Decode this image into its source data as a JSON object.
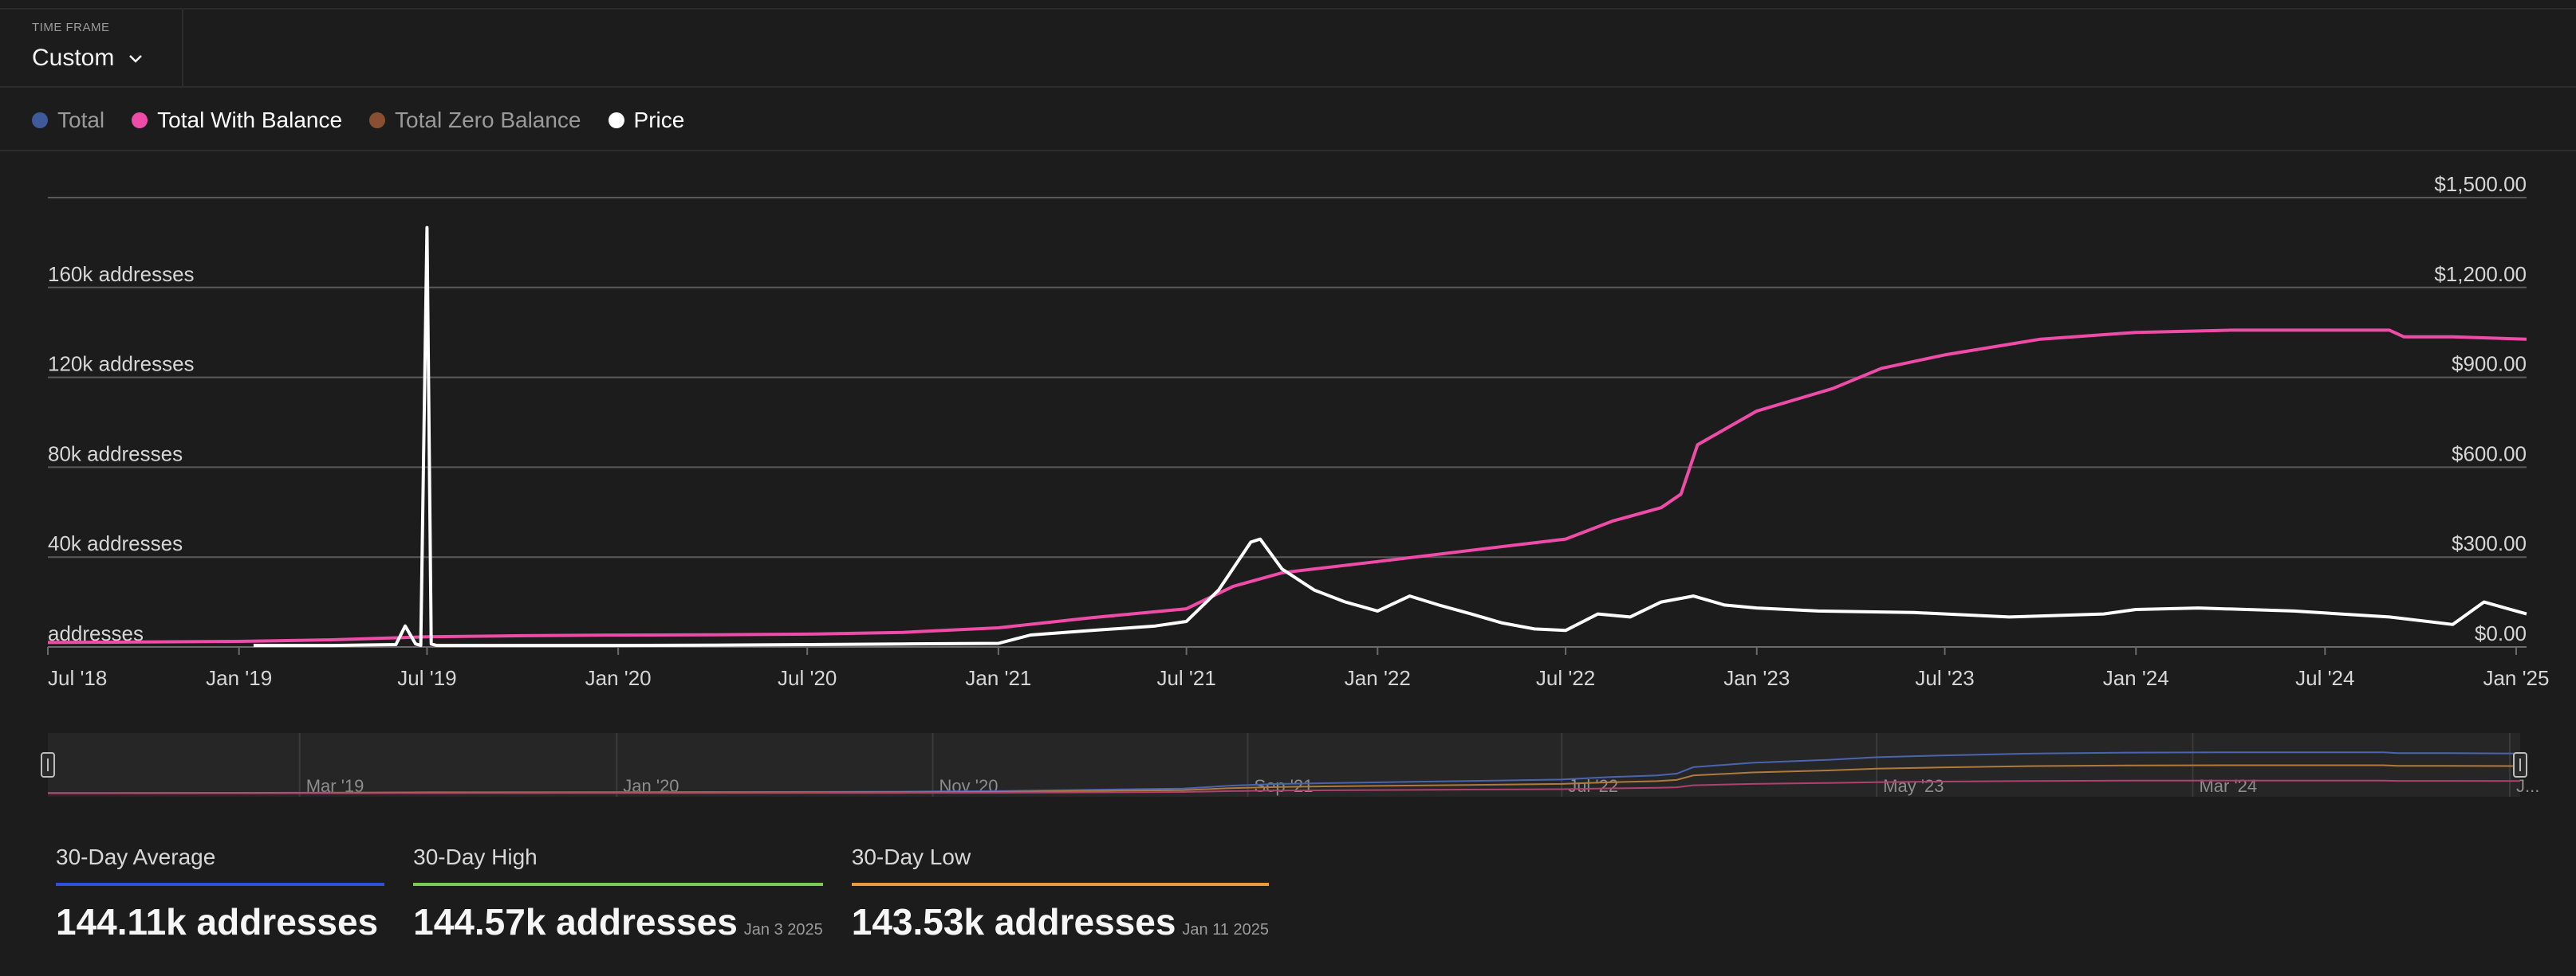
{
  "header": {
    "time_frame_label": "TIME FRAME",
    "time_frame_value": "Custom"
  },
  "legend": [
    {
      "name": "Total",
      "color": "#3f5a9a",
      "active": false
    },
    {
      "name": "Total With Balance",
      "color": "#ef4ba8",
      "active": true
    },
    {
      "name": "Total Zero Balance",
      "color": "#8a4f31",
      "active": false
    },
    {
      "name": "Price",
      "color": "#ffffff",
      "active": true
    }
  ],
  "chart_data": {
    "type": "line",
    "x_axis": {
      "type": "date",
      "range": [
        "2018-07-01",
        "2025-01-11"
      ],
      "tick_labels": [
        "Jul '18",
        "Jan '19",
        "Jul '19",
        "Jan '20",
        "Jul '20",
        "Jan '21",
        "Jul '21",
        "Jan '22",
        "Jul '22",
        "Jan '23",
        "Jul '23",
        "Jan '24",
        "Jul '24",
        "Jan '25"
      ],
      "tick_dates": [
        "2018-07-01",
        "2019-01-01",
        "2019-07-01",
        "2020-01-01",
        "2020-07-01",
        "2021-01-01",
        "2021-07-01",
        "2022-01-01",
        "2022-07-01",
        "2023-01-01",
        "2023-07-01",
        "2024-01-01",
        "2024-07-01",
        "2025-01-01"
      ]
    },
    "y_axis_left": {
      "range": [
        0,
        200000
      ],
      "ticks": [
        0,
        40000,
        80000,
        120000,
        160000
      ],
      "tick_labels": [
        "addresses",
        "40k addresses",
        "80k addresses",
        "120k addresses",
        "160k addresses"
      ]
    },
    "y_axis_right": {
      "range": [
        0,
        1500
      ],
      "ticks": [
        0,
        300,
        600,
        900,
        1200,
        1500
      ],
      "tick_labels": [
        "$0.00",
        "$300.00",
        "$600.00",
        "$900.00",
        "$1,200.00",
        "$1,500.00"
      ]
    },
    "grid": true,
    "series": [
      {
        "name": "Total With Balance",
        "axis": "left",
        "color": "#ef4ba8",
        "x": [
          "2018-07-01",
          "2018-10-01",
          "2019-01-01",
          "2019-04-01",
          "2019-07-01",
          "2019-10-01",
          "2020-01-01",
          "2020-04-01",
          "2020-07-01",
          "2020-10-01",
          "2021-01-01",
          "2021-04-01",
          "2021-07-01",
          "2021-08-15",
          "2021-10-01",
          "2022-01-01",
          "2022-04-01",
          "2022-07-01",
          "2022-08-15",
          "2022-10-01",
          "2022-10-20",
          "2022-11-05",
          "2023-01-01",
          "2023-03-15",
          "2023-05-01",
          "2023-07-01",
          "2023-10-01",
          "2024-01-01",
          "2024-04-01",
          "2024-07-01",
          "2024-09-01",
          "2024-09-15",
          "2024-11-01",
          "2025-01-11"
        ],
        "values": [
          2000,
          2200,
          2500,
          3200,
          4500,
          5000,
          5300,
          5400,
          5700,
          6500,
          8500,
          13000,
          17000,
          27000,
          33000,
          38000,
          43000,
          48000,
          56000,
          62000,
          68000,
          90000,
          105000,
          115000,
          124000,
          130000,
          137000,
          140000,
          141000,
          141000,
          141000,
          138000,
          138000,
          137000
        ]
      },
      {
        "name": "Price",
        "axis": "right",
        "color": "#ffffff",
        "x": [
          "2019-01-15",
          "2019-04-01",
          "2019-06-01",
          "2019-06-10",
          "2019-06-20",
          "2019-06-25",
          "2019-07-01",
          "2019-07-05",
          "2019-07-10",
          "2019-07-20",
          "2019-10-01",
          "2020-01-01",
          "2020-04-01",
          "2020-07-01",
          "2020-10-01",
          "2021-01-01",
          "2021-02-01",
          "2021-04-01",
          "2021-06-01",
          "2021-07-01",
          "2021-08-01",
          "2021-09-01",
          "2021-09-10",
          "2021-10-01",
          "2021-11-01",
          "2021-12-01",
          "2022-01-01",
          "2022-02-01",
          "2022-03-01",
          "2022-04-01",
          "2022-05-01",
          "2022-06-01",
          "2022-07-01",
          "2022-08-01",
          "2022-09-01",
          "2022-10-01",
          "2022-11-01",
          "2022-12-01",
          "2023-01-01",
          "2023-03-01",
          "2023-06-01",
          "2023-09-01",
          "2023-12-01",
          "2024-01-01",
          "2024-03-01",
          "2024-06-01",
          "2024-09-01",
          "2024-11-01",
          "2024-12-01",
          "2025-01-11"
        ],
        "values": [
          5,
          5,
          8,
          70,
          10,
          5,
          1400,
          10,
          5,
          5,
          5,
          5,
          6,
          8,
          10,
          12,
          40,
          55,
          70,
          85,
          190,
          350,
          360,
          260,
          190,
          150,
          120,
          170,
          140,
          110,
          80,
          60,
          55,
          110,
          100,
          150,
          170,
          140,
          130,
          120,
          115,
          100,
          110,
          125,
          130,
          120,
          100,
          75,
          150,
          110
        ]
      }
    ]
  },
  "navigator": {
    "tick_labels": [
      "Mar '19",
      "Jan '20",
      "Nov '20",
      "Sep '21",
      "Jul '22",
      "May '23",
      "Mar '24",
      "J..."
    ],
    "tick_dates": [
      "2019-03-01",
      "2020-01-01",
      "2020-11-01",
      "2021-09-01",
      "2022-07-01",
      "2023-05-01",
      "2024-03-01",
      "2025-01-01"
    ]
  },
  "stats": [
    {
      "label": "30-Day Average",
      "value": "144.11k addresses",
      "date": "",
      "color": "#2e4fd6"
    },
    {
      "label": "30-Day High",
      "value": "144.57k addresses",
      "date": "Jan 3 2025",
      "color": "#7acb55"
    },
    {
      "label": "30-Day Low",
      "value": "143.53k addresses",
      "date": "Jan 11 2025",
      "color": "#e89a3c"
    }
  ]
}
